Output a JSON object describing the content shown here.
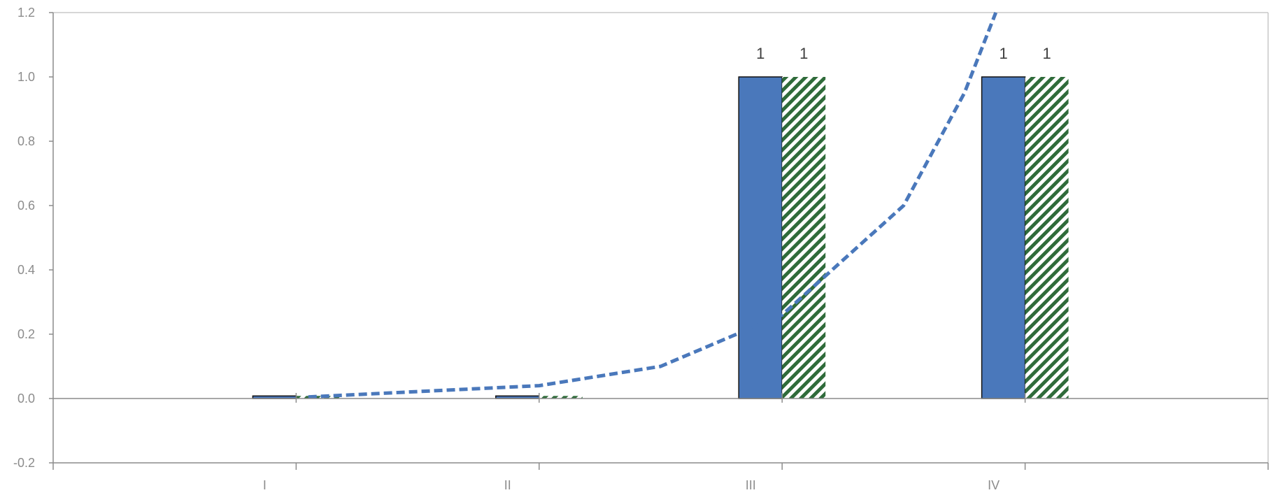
{
  "chart_data": {
    "type": "bar",
    "categories": [
      "I",
      "II",
      "III",
      "IV"
    ],
    "series": [
      {
        "values": [
          0.008,
          0.008,
          1,
          1
        ],
        "data_labels": [
          "",
          "",
          "1",
          "1"
        ],
        "color": "#4a78bb",
        "fill": "solid"
      },
      {
        "values": [
          0.008,
          0.008,
          1,
          1
        ],
        "data_labels": [
          "",
          "",
          "1",
          "1"
        ],
        "color": "#2f6b3a",
        "fill": "diagonal-hatch"
      }
    ],
    "trendline": {
      "type": "exponential",
      "style": "dashed",
      "color": "#4a78bb",
      "x": [
        1.05,
        2.0,
        2.5,
        3.0,
        3.5,
        3.75,
        3.9
      ],
      "y": [
        0.005,
        0.04,
        0.1,
        0.26,
        0.6,
        0.95,
        1.24
      ]
    },
    "y_ticks": [
      "1.2",
      "1.0",
      "0.8",
      "0.6",
      "0.4",
      "0.2",
      "0.0",
      "-0.2"
    ],
    "y_tick_values": [
      1.2,
      1.0,
      0.8,
      0.6,
      0.4,
      0.2,
      0.0,
      -0.2
    ],
    "ylim": [
      -0.2,
      1.2
    ],
    "xlim": [
      0,
      5
    ],
    "grid": false,
    "title": "",
    "xlabel": "",
    "ylabel": ""
  }
}
